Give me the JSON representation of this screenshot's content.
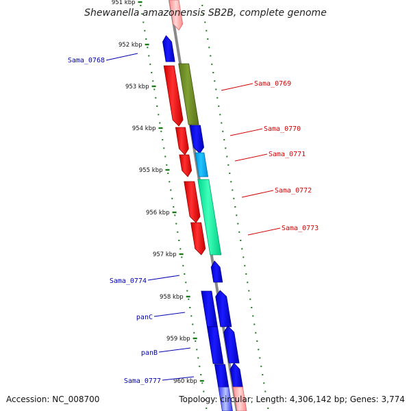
{
  "title": "Shewanella amazonensis SB2B, complete genome",
  "footer": {
    "accession": "Accession: NC_008700",
    "topology": "Topology: circular; Length: 4,306,142 bp; Genes: 3,774"
  },
  "colors": {
    "backbone": "#888888",
    "tick_dots": "#1a7a1a",
    "forward_red": "#ff0000",
    "reverse_blue": "#0000ee",
    "olive": "#6b8e23",
    "light_blue": "#00aaee",
    "teal": "#00ee99",
    "label_red": "#d40000",
    "label_blue": "#0000b0"
  },
  "ticks": [
    {
      "label": "951 kbp"
    },
    {
      "label": "952 kbp"
    },
    {
      "label": "953 kbp"
    },
    {
      "label": "954 kbp"
    },
    {
      "label": "955 kbp"
    },
    {
      "label": "956 kbp"
    },
    {
      "label": "957 kbp"
    },
    {
      "label": "958 kbp"
    },
    {
      "label": "959 kbp"
    },
    {
      "label": "960 kbp"
    }
  ],
  "gene_labels": [
    {
      "text": "Sama_0768",
      "color": "blue"
    },
    {
      "text": "Sama_0769",
      "color": "red"
    },
    {
      "text": "Sama_0770",
      "color": "red"
    },
    {
      "text": "Sama_0771",
      "color": "red"
    },
    {
      "text": "Sama_0772",
      "color": "red"
    },
    {
      "text": "Sama_0773",
      "color": "red"
    },
    {
      "text": "Sama_0774",
      "color": "blue"
    },
    {
      "text": "panC",
      "color": "blue"
    },
    {
      "text": "panB",
      "color": "blue"
    },
    {
      "text": "Sama_0777",
      "color": "blue"
    }
  ]
}
